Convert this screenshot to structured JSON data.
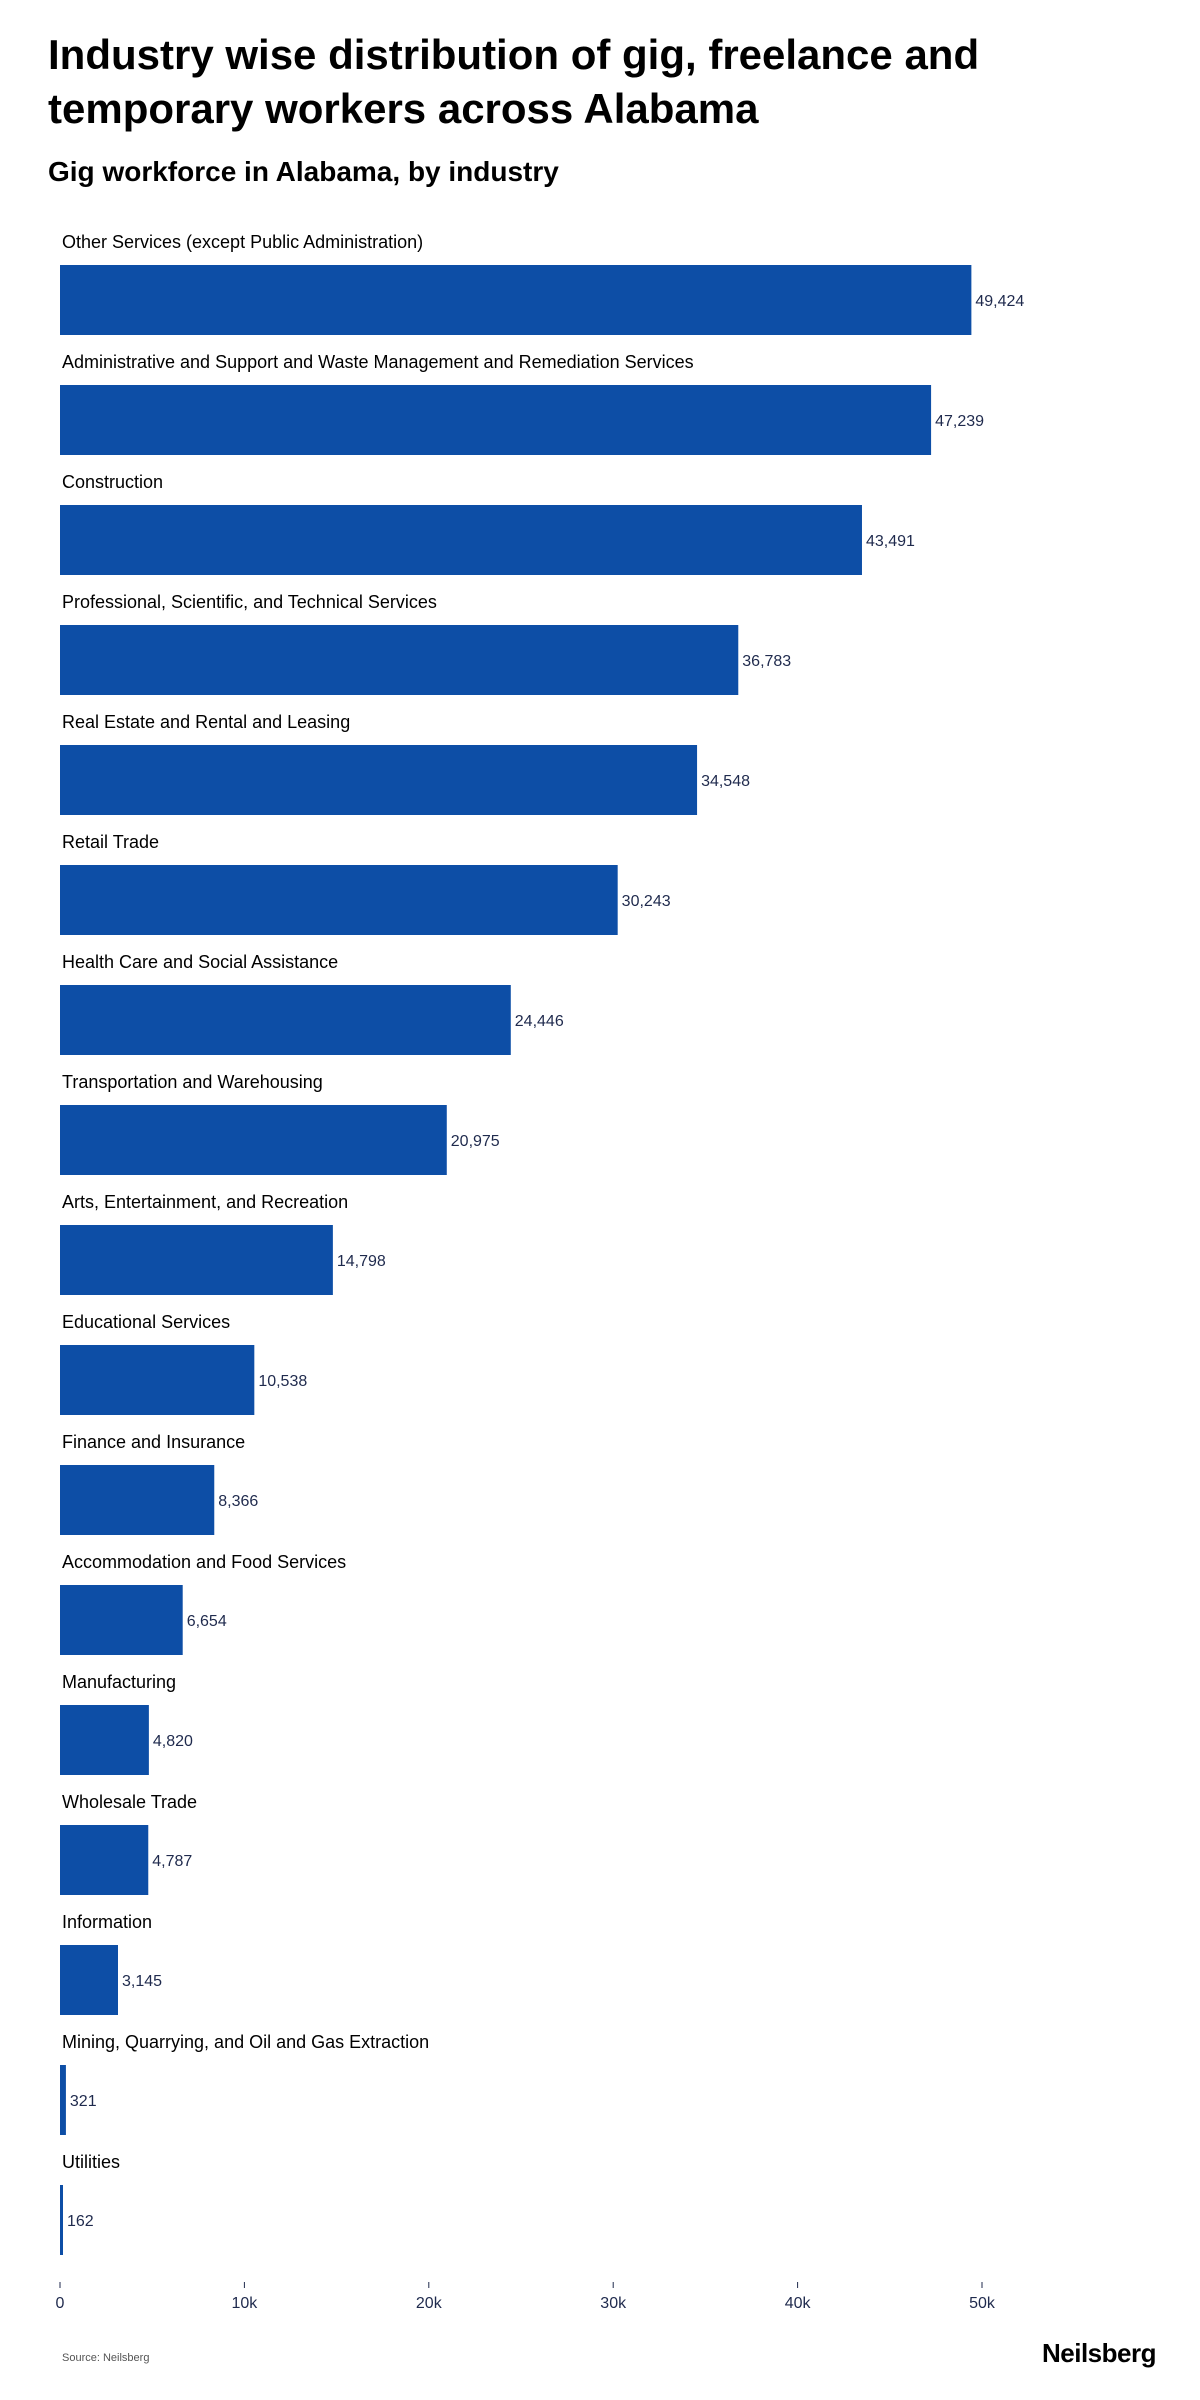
{
  "header": {
    "title": "Industry wise distribution of gig, freelance and temporary workers across Alabama",
    "subtitle": "Gig workforce in Alabama, by industry"
  },
  "footer": {
    "source": "Source: Neilsberg",
    "logo": "Neilsberg"
  },
  "colors": {
    "bar": "#0d4ea6",
    "value_label": "#1f2a4d",
    "axis": "#1f2a4d"
  },
  "chart_data": {
    "type": "bar",
    "orientation": "horizontal",
    "title": "Gig workforce in Alabama, by industry",
    "xlabel": "",
    "ylabel": "",
    "categories": [
      "Other Services (except Public Administration)",
      "Administrative and Support and Waste Management and Remediation Services",
      "Construction",
      "Professional, Scientific, and Technical Services",
      "Real Estate and Rental and Leasing",
      "Retail Trade",
      "Health Care and Social Assistance",
      "Transportation and Warehousing",
      "Arts, Entertainment, and Recreation",
      "Educational Services",
      "Finance and Insurance",
      "Accommodation and Food Services",
      "Manufacturing",
      "Wholesale Trade",
      "Information",
      "Mining, Quarrying, and Oil and Gas Extraction",
      "Utilities"
    ],
    "values": [
      49424,
      47239,
      43491,
      36783,
      34548,
      30243,
      24446,
      20975,
      14798,
      10538,
      8366,
      6654,
      4820,
      4787,
      3145,
      321,
      162
    ],
    "value_labels": [
      "49,424",
      "47,239",
      "43,491",
      "36,783",
      "34,548",
      "30,243",
      "24,446",
      "20,975",
      "14,798",
      "10,538",
      "8,366",
      "6,654",
      "4,820",
      "4,787",
      "3,145",
      "321",
      "162"
    ],
    "xlim": [
      0,
      50000
    ],
    "xticks": [
      0,
      10000,
      20000,
      30000,
      40000,
      50000
    ],
    "xtick_labels": [
      "0",
      "10k",
      "20k",
      "30k",
      "40k",
      "50k"
    ],
    "grid": false,
    "legend": "none"
  }
}
